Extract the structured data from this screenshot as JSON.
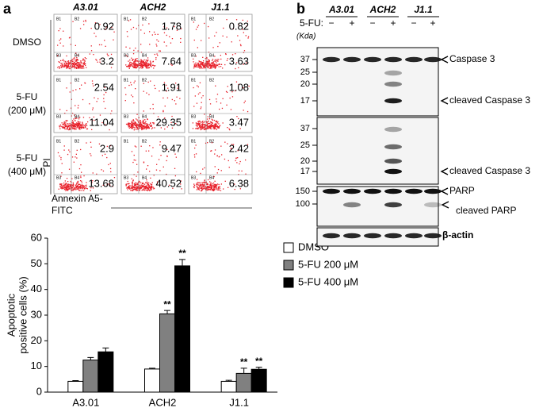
{
  "panel_a": {
    "label": "a",
    "flow": {
      "columns": [
        "A3.01",
        "ACH2",
        "J1.1"
      ],
      "rows": [
        [
          "DMSO"
        ],
        [
          "5-FU",
          "(200 μM)"
        ],
        [
          "5-FU",
          "(400 μM)"
        ]
      ],
      "quadrant_labels": [
        "B1",
        "B2",
        "B3",
        "B4"
      ],
      "upper_right": [
        [
          0.92,
          1.78,
          0.82
        ],
        [
          2.54,
          1.91,
          1.08
        ],
        [
          2.9,
          9.47,
          2.42
        ]
      ],
      "lower_right": [
        [
          3.2,
          7.64,
          3.63
        ],
        [
          11.04,
          29.35,
          3.47
        ],
        [
          13.68,
          40.52,
          6.38
        ]
      ],
      "y_axis_label": "PI",
      "x_axis_label": [
        "Annexin A5-",
        "FITC"
      ]
    }
  },
  "chart_data": {
    "type": "bar",
    "ylabel": [
      "Apoptotic",
      "positive cells (%)"
    ],
    "categories": [
      "A3.01",
      "ACH2",
      "J1.1"
    ],
    "series": [
      {
        "name": "DMSO",
        "color": "#ffffff",
        "values": [
          4.2,
          9,
          4.2
        ],
        "errors": [
          0.3,
          0.3,
          0.4
        ]
      },
      {
        "name": "5-FU 200 μM",
        "color": "#808080",
        "values": [
          12.5,
          30.5,
          7.3
        ],
        "errors": [
          1,
          1.3,
          2
        ],
        "significance": [
          null,
          "**",
          "**"
        ]
      },
      {
        "name": "5-FU 400 μM",
        "color": "#000000",
        "values": [
          15.7,
          49.2,
          8.9
        ],
        "errors": [
          1.5,
          2.5,
          0.8
        ],
        "significance": [
          null,
          "**",
          "**"
        ]
      }
    ],
    "ylim": [
      0,
      60
    ],
    "yticks": [
      0,
      10,
      20,
      30,
      40,
      50,
      60
    ]
  },
  "panel_b": {
    "label": "b",
    "lanes": [
      "A3.01",
      "ACH2",
      "J1.1"
    ],
    "treatment_label": "5-FU:",
    "treatment": [
      "−",
      "+",
      "−",
      "+",
      "−",
      "+"
    ],
    "unit": "(Kda)",
    "blots": [
      {
        "markers": [
          37,
          25,
          20,
          17
        ],
        "labels": [
          "Caspase 3",
          "cleaved Caspase 3"
        ]
      },
      {
        "markers": [
          37,
          25,
          20,
          17
        ],
        "labels": [
          "cleaved Caspase 3"
        ]
      },
      {
        "markers": [
          150,
          100
        ],
        "labels": [
          "PARP",
          "cleaved PARP"
        ]
      },
      {
        "labels": [
          "β-actin"
        ]
      }
    ]
  }
}
